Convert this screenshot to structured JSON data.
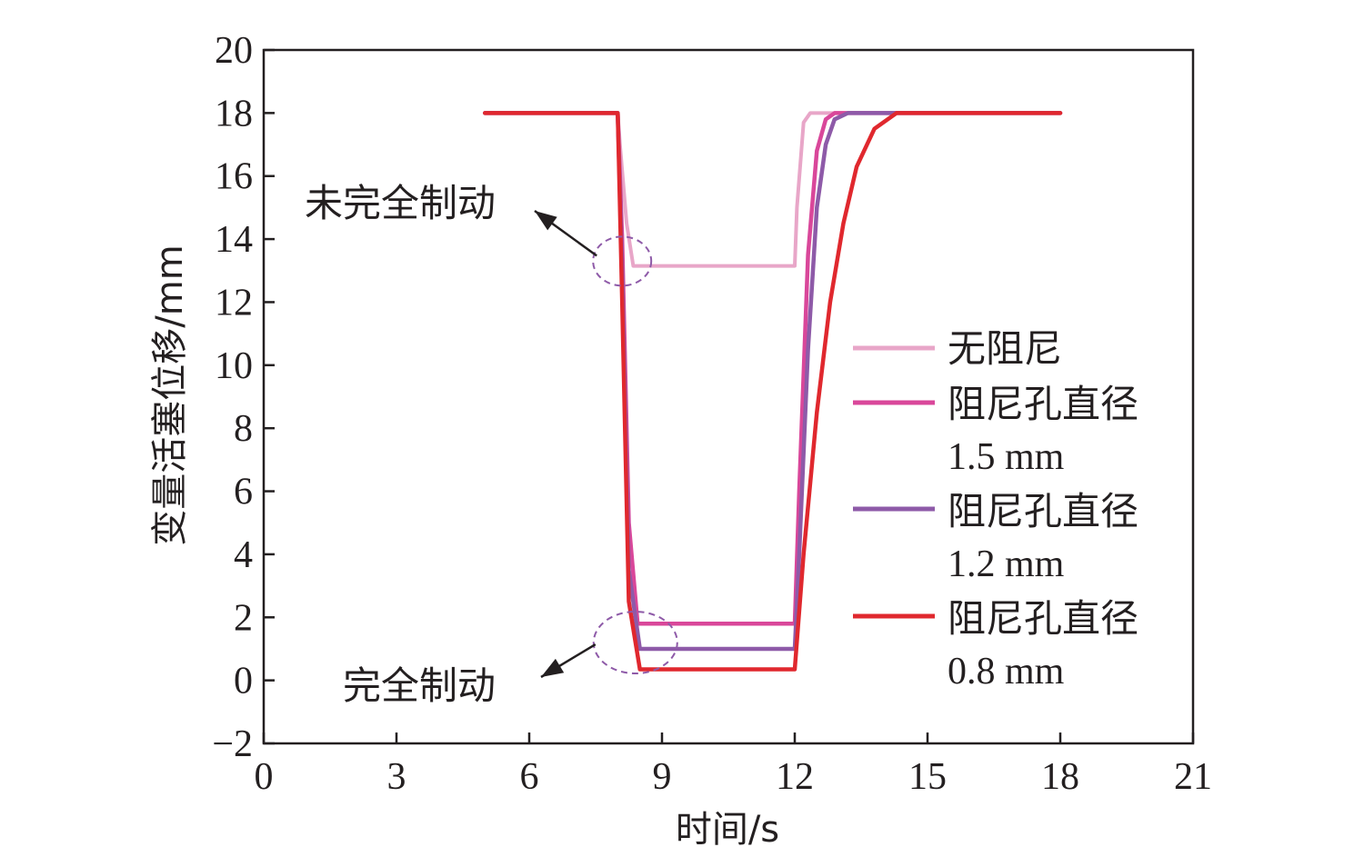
{
  "chart_data": {
    "type": "line",
    "xlabel": "时间/s",
    "ylabel": "变量活塞位移/mm",
    "xlim": [
      0,
      21
    ],
    "ylim": [
      -2,
      20
    ],
    "xticks": [
      0,
      3,
      6,
      9,
      12,
      15,
      18,
      21
    ],
    "yticks": [
      -2,
      0,
      2,
      4,
      6,
      8,
      10,
      12,
      14,
      16,
      18,
      20
    ],
    "grid": false,
    "legend_position": "right",
    "series": [
      {
        "name": "无阻尼",
        "color": "#e8a6c8",
        "x": [
          5,
          8.0,
          8.05,
          8.2,
          8.35,
          12.0,
          12.05,
          12.2,
          12.35,
          18
        ],
        "y": [
          18,
          18,
          17.0,
          14.5,
          13.15,
          13.15,
          15.0,
          17.7,
          18,
          18
        ]
      },
      {
        "name": "阻尼孔直径",
        "name_line2": "1.5 mm",
        "color": "#d9479a",
        "x": [
          5,
          8.0,
          8.1,
          8.25,
          8.45,
          12.0,
          12.1,
          12.3,
          12.5,
          12.7,
          12.9,
          18
        ],
        "y": [
          18,
          18,
          14.0,
          5.0,
          1.8,
          1.8,
          6.0,
          13.5,
          16.8,
          17.8,
          18,
          18
        ]
      },
      {
        "name": "阻尼孔直径",
        "name_line2": "1.2 mm",
        "color": "#8e5aa8",
        "x": [
          5,
          8.0,
          8.1,
          8.25,
          8.5,
          12.0,
          12.1,
          12.3,
          12.5,
          12.7,
          12.9,
          13.2,
          18
        ],
        "y": [
          18,
          18,
          13.0,
          3.5,
          1.0,
          1.0,
          4.0,
          10.5,
          15.0,
          17.0,
          17.8,
          18,
          18
        ]
      },
      {
        "name": "阻尼孔直径",
        "name_line2": "0.8 mm",
        "color": "#e0282e",
        "x": [
          5,
          8.0,
          8.1,
          8.25,
          8.5,
          12.0,
          12.2,
          12.5,
          12.8,
          13.1,
          13.4,
          13.8,
          14.3,
          18
        ],
        "y": [
          18,
          18,
          12.0,
          2.5,
          0.35,
          0.35,
          4.0,
          8.5,
          12.0,
          14.5,
          16.3,
          17.5,
          18,
          18
        ]
      }
    ],
    "annotations": [
      {
        "text": "未完全制动",
        "ellipse_center": [
          8.1,
          13.3
        ]
      },
      {
        "text": "完全制动",
        "ellipse_center": [
          8.4,
          1.2
        ]
      }
    ]
  }
}
